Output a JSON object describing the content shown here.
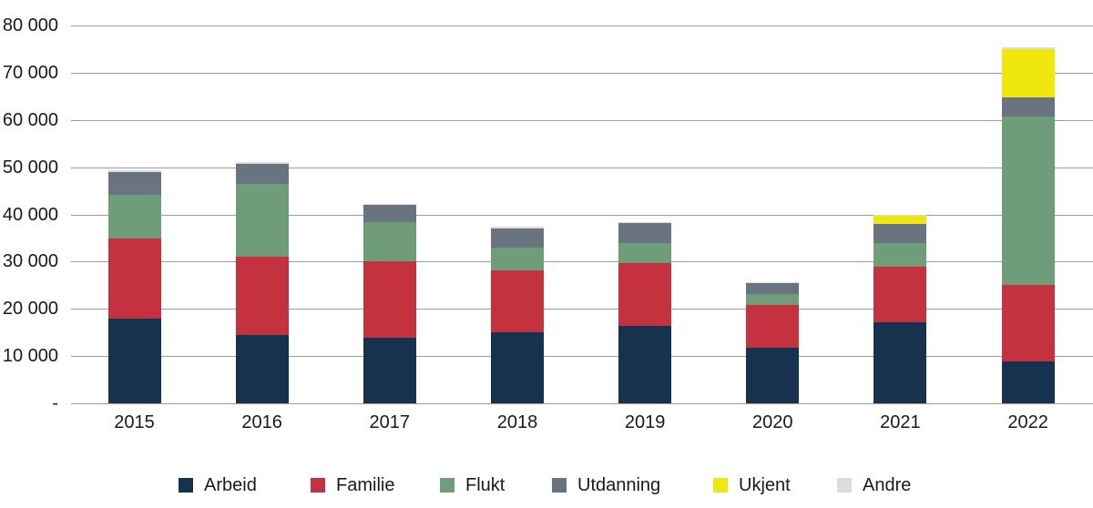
{
  "chart_data": {
    "type": "bar",
    "stacked": true,
    "title": "",
    "xlabel": "",
    "ylabel": "",
    "ylim": [
      0,
      80000
    ],
    "grid": true,
    "legend_position": "bottom",
    "categories": [
      "2015",
      "2016",
      "2017",
      "2018",
      "2019",
      "2020",
      "2021",
      "2022"
    ],
    "series": [
      {
        "name": "Arbeid",
        "color": "#16324e",
        "values": [
          18000,
          14500,
          13800,
          15100,
          16400,
          11800,
          17100,
          8900
        ]
      },
      {
        "name": "Familie",
        "color": "#c4323f",
        "values": [
          16800,
          16500,
          16300,
          13100,
          13300,
          9100,
          11900,
          16100
        ]
      },
      {
        "name": "Flukt",
        "color": "#6f9d79",
        "values": [
          9300,
          15400,
          8200,
          4700,
          4200,
          2300,
          5000,
          35800
        ]
      },
      {
        "name": "Utdanning",
        "color": "#6a7480",
        "values": [
          4900,
          4300,
          3800,
          4200,
          4200,
          2300,
          3900,
          3900
        ]
      },
      {
        "name": "Ukjent",
        "color": "#f0e70f",
        "values": [
          0,
          0,
          0,
          0,
          0,
          0,
          1900,
          10300
        ]
      },
      {
        "name": "Andre",
        "color": "#dcdcdc",
        "values": [
          300,
          300,
          200,
          300,
          200,
          200,
          200,
          300
        ]
      }
    ]
  },
  "y_axis": {
    "tick_values": [
      80000,
      70000,
      60000,
      50000,
      40000,
      30000,
      20000,
      10000,
      0
    ],
    "tick_labels": [
      "80 000",
      "70 000",
      "60 000",
      "50 000",
      "40 000",
      "30 000",
      "20 000",
      "10 000",
      "-"
    ]
  },
  "x_axis": {
    "labels": [
      "2015",
      "2016",
      "2017",
      "2018",
      "2019",
      "2020",
      "2021",
      "2022"
    ]
  },
  "legend": {
    "items": [
      {
        "label": "Arbeid",
        "color": "#16324e"
      },
      {
        "label": "Familie",
        "color": "#c4323f"
      },
      {
        "label": "Flukt",
        "color": "#6f9d79"
      },
      {
        "label": "Utdanning",
        "color": "#6a7480"
      },
      {
        "label": "Ukjent",
        "color": "#f0e70f"
      },
      {
        "label": "Andre",
        "color": "#dcdcdc"
      }
    ]
  },
  "colors": {
    "gridline": "#9c9c9c",
    "text": "#1a1a1a",
    "background": "#ffffff"
  }
}
